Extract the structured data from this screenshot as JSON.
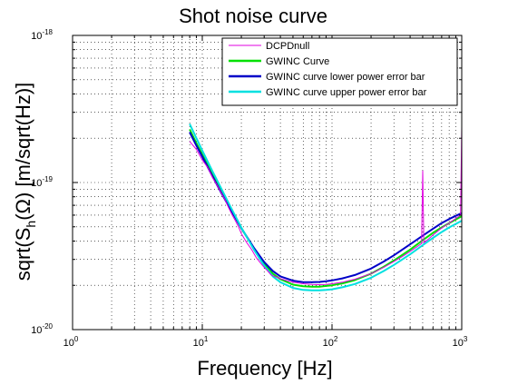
{
  "chart_data": {
    "type": "line",
    "title": "Shot noise curve",
    "xlabel": "Frequency [Hz]",
    "ylabel": {
      "prefix": "sqrt(S",
      "subscript": "h",
      "suffix": "(Ω) [m/sqrt(Hz)]"
    },
    "x_scale": "log",
    "y_scale": "log",
    "xlim": [
      1,
      1000
    ],
    "ylim": [
      1e-20,
      1e-18
    ],
    "x_ticks": [
      {
        "value": 1,
        "base": "10",
        "exp": "0"
      },
      {
        "value": 10,
        "base": "10",
        "exp": "1"
      },
      {
        "value": 100,
        "base": "10",
        "exp": "2"
      },
      {
        "value": 1000,
        "base": "10",
        "exp": "3"
      }
    ],
    "y_ticks": [
      {
        "value": 1e-20,
        "base": "10",
        "exp": "-20"
      },
      {
        "value": 1e-19,
        "base": "10",
        "exp": "-19"
      },
      {
        "value": 1e-18,
        "base": "10",
        "exp": "-18"
      }
    ],
    "grid": true,
    "legend_position": "top-right",
    "series": [
      {
        "name": "DCPDnull",
        "color": "#e000e0",
        "width": 1,
        "x": [
          8,
          9,
          10,
          11,
          12,
          13,
          14,
          15,
          16,
          17,
          18,
          19,
          20,
          22,
          24,
          26,
          28,
          30,
          32,
          34,
          36,
          40,
          45,
          50,
          60,
          70,
          80,
          90,
          100,
          120,
          150,
          200,
          250,
          300,
          350,
          400,
          450,
          490,
          500,
          510,
          550,
          600,
          700,
          800,
          900,
          980,
          1000
        ],
        "y": [
          1.9e-19,
          1.68e-19,
          1.42e-19,
          1.27e-19,
          1.08e-19,
          9.6e-20,
          8.5e-20,
          7.6e-20,
          6.7e-20,
          6e-20,
          5.5e-20,
          5e-20,
          4.5e-20,
          3.9e-20,
          3.5e-20,
          3.1e-20,
          2.85e-20,
          2.65e-20,
          2.5e-20,
          2.35e-20,
          2.3e-20,
          2.22e-20,
          2.15e-20,
          2.1e-20,
          2.05e-20,
          2.03e-20,
          2.02e-20,
          2.03e-20,
          2.05e-20,
          2.1e-20,
          2.2e-20,
          2.4e-20,
          2.65e-20,
          2.9e-20,
          3.15e-20,
          3.4e-20,
          3.65e-20,
          3.85e-20,
          1.2e-19,
          3.9e-20,
          4.1e-20,
          4.4e-20,
          4.9e-20,
          5.3e-20,
          5.7e-20,
          6e-20,
          2.4e-19
        ]
      },
      {
        "name": "GWINC Curve",
        "color": "#00e000",
        "width": 2,
        "x": [
          8,
          9,
          10,
          12,
          14,
          16,
          18,
          20,
          25,
          30,
          35,
          40,
          50,
          60,
          70,
          80,
          90,
          100,
          120,
          150,
          200,
          250,
          300,
          400,
          500,
          600,
          700,
          800,
          1000
        ],
        "y": [
          2.3e-19,
          1.85e-19,
          1.55e-19,
          1.13e-19,
          8.7e-20,
          7e-20,
          5.8e-20,
          4.9e-20,
          3.55e-20,
          2.8e-20,
          2.4e-20,
          2.2e-20,
          2.02e-20,
          1.97e-20,
          1.96e-20,
          1.96e-20,
          1.98e-20,
          2e-20,
          2.06e-20,
          2.17e-20,
          2.4e-20,
          2.67e-20,
          2.95e-20,
          3.5e-20,
          4.05e-20,
          4.55e-20,
          4.95e-20,
          5.3e-20,
          5.9e-20
        ]
      },
      {
        "name": "GWINC curve lower power error bar",
        "color": "#0000c8",
        "width": 2,
        "x": [
          8,
          9,
          10,
          12,
          14,
          16,
          18,
          20,
          25,
          30,
          35,
          40,
          50,
          60,
          70,
          80,
          90,
          100,
          120,
          150,
          200,
          250,
          300,
          400,
          500,
          600,
          700,
          800,
          1000
        ],
        "y": [
          2.2e-19,
          1.78e-19,
          1.5e-19,
          1.1e-19,
          8.5e-20,
          6.9e-20,
          5.75e-20,
          4.9e-20,
          3.6e-20,
          2.88e-20,
          2.5e-20,
          2.3e-20,
          2.15e-20,
          2.1e-20,
          2.1e-20,
          2.11e-20,
          2.13e-20,
          2.16e-20,
          2.23e-20,
          2.35e-20,
          2.6e-20,
          2.9e-20,
          3.2e-20,
          3.8e-20,
          4.35e-20,
          4.85e-20,
          5.3e-20,
          5.65e-20,
          6.2e-20
        ]
      },
      {
        "name": "GWINC curve upper power error bar",
        "color": "#00e0e0",
        "width": 2,
        "x": [
          8,
          9,
          10,
          12,
          14,
          16,
          18,
          20,
          25,
          30,
          35,
          40,
          50,
          60,
          70,
          80,
          90,
          100,
          120,
          150,
          200,
          250,
          300,
          400,
          500,
          600,
          700,
          800,
          1000
        ],
        "y": [
          2.5e-19,
          2e-19,
          1.65e-19,
          1.19e-19,
          9.1e-20,
          7.2e-20,
          5.9e-20,
          4.95e-20,
          3.5e-20,
          2.72e-20,
          2.3e-20,
          2.1e-20,
          1.92e-20,
          1.86e-20,
          1.85e-20,
          1.85e-20,
          1.86e-20,
          1.88e-20,
          1.94e-20,
          2.04e-20,
          2.25e-20,
          2.5e-20,
          2.75e-20,
          3.25e-20,
          3.75e-20,
          4.2e-20,
          4.6e-20,
          4.95e-20,
          5.5e-20
        ]
      }
    ]
  }
}
